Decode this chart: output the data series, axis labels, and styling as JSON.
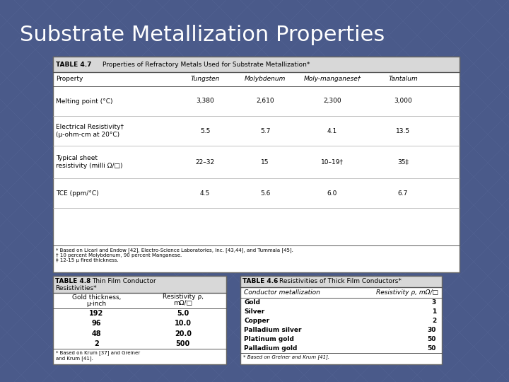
{
  "title": "Substrate Metallization Properties",
  "title_fontsize": 22,
  "title_color": "white",
  "bg_color": "#4a5a8a",
  "table47": {
    "label": "TABLE 4.7",
    "title": "Properties of Refractory Metals Used for Substrate Metallization*",
    "columns": [
      "Property",
      "Tungsten",
      "Molybdenum",
      "Moly-manganese†",
      "Tantalum"
    ],
    "rows": [
      [
        "Melting point (°C)",
        "3,380",
        "2,610",
        "2,300",
        "3,000"
      ],
      [
        "Electrical Resistivity†\n(μ-ohm-cm at 20°C)",
        "5.5",
        "5.7",
        "4.1",
        "13.5"
      ],
      [
        "Typical sheet\nresistivity (milli Ω/□)",
        "22–32",
        "15",
        "10–19†",
        "35‡"
      ],
      [
        "TCE (ppm/°C)",
        "4.5",
        "5.6",
        "6.0",
        "6.7"
      ]
    ],
    "footnotes": "* Based on Licari and Endow [42], Electro-Science Laboratories, Inc. [43,44], and Tummala [45].\n† 10 percent Molybdenum, 90 percent Manganese.\n‡ 12-15 μ fired thickness."
  },
  "table48": {
    "label": "TABLE 4.8",
    "title_line1": "Thin Film Conductor",
    "title_line2": "Resistivities*",
    "col1_header_line1": "Gold thickness,",
    "col1_header_line2": "μ-inch",
    "col2_header_line1": "Resistivity ρ,",
    "col2_header_line2": "mΩ/□",
    "rows": [
      [
        "192",
        "5.0"
      ],
      [
        "96",
        "10.0"
      ],
      [
        "48",
        "20.0"
      ],
      [
        "2",
        "500"
      ]
    ],
    "footnote": "* Based on Krum [37] and Greiner\nand Krum [41]."
  },
  "table46": {
    "label": "TABLE 4.6",
    "title": "Resistivities of Thick Film Conductors*",
    "col1_header": "Conductor metallization",
    "col2_header": "Resistivity ρ, mΩ/□",
    "rows": [
      [
        "Gold",
        "3"
      ],
      [
        "Silver",
        "1"
      ],
      [
        "Copper",
        "2"
      ],
      [
        "Palladium silver",
        "30"
      ],
      [
        "Platinum gold",
        "50"
      ],
      [
        "Palladium gold",
        "50"
      ]
    ],
    "footnote": "* Based on Greiner and Krum [41]."
  }
}
